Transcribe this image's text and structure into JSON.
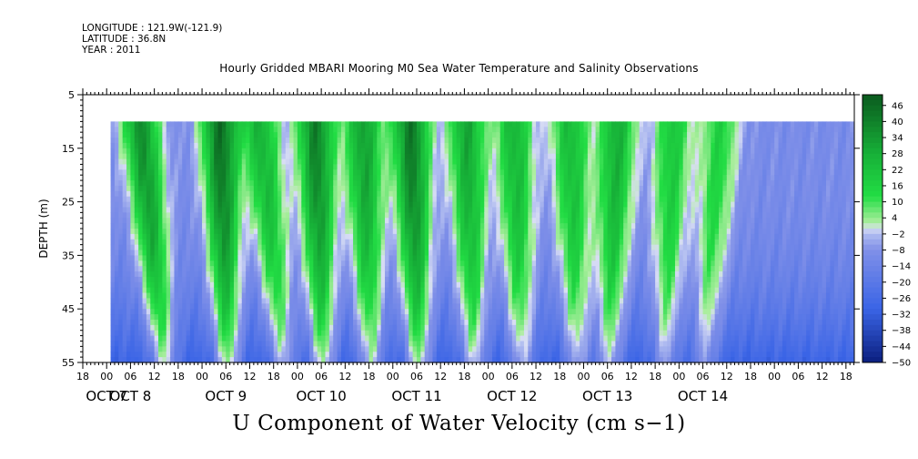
{
  "header": {
    "longitude": "LONGITUDE : 121.9W(-121.9)",
    "latitude": "LATITUDE : 36.8N",
    "year": "YEAR : 2011"
  },
  "colors": {
    "deep_blue": "#0b1e7e",
    "blue": "#3a64e6",
    "light_blue": "#b0bcf0",
    "light_green": "#aeeea0",
    "green": "#22dd44",
    "dark_green": "#0a5a1e",
    "no_data": "#ffffff"
  },
  "chart_data": {
    "type": "heatmap",
    "title": "Hourly Gridded MBARI Mooring M0 Sea Water Temperature and Salinity Observations",
    "xlabel": "U Component of Water Velocity (cm s−1)",
    "ylabel": "DEPTH (m)",
    "y_axis": {
      "range": [
        5,
        55
      ],
      "reversed": true,
      "ticks": [
        5,
        15,
        25,
        35,
        45,
        55
      ]
    },
    "x_axis": {
      "range_hours": "Oct 7 17:00 to Oct 14 20:00",
      "hour_ticks": [
        "18",
        "00",
        "06",
        "12",
        "18",
        "00",
        "06",
        "12",
        "18",
        "00",
        "06",
        "12",
        "18",
        "00",
        "06",
        "12",
        "18",
        "00",
        "06",
        "12",
        "18",
        "00",
        "06",
        "12",
        "18",
        "00",
        "06",
        "12",
        "18",
        "00",
        "06",
        "12",
        "18"
      ],
      "day_labels": [
        {
          "text": "OCT 7",
          "at_tick": 1
        },
        {
          "text": "OCT 8",
          "at_tick": 2
        },
        {
          "text": "OCT 9",
          "at_tick": 6
        },
        {
          "text": "OCT 10",
          "at_tick": 10
        },
        {
          "text": "OCT 11",
          "at_tick": 14
        },
        {
          "text": "OCT 12",
          "at_tick": 18
        },
        {
          "text": "OCT 13",
          "at_tick": 22
        },
        {
          "text": "OCT 14",
          "at_tick": 26
        }
      ]
    },
    "data_depth_range": [
      10,
      55
    ],
    "data_start_offset_hours": 7,
    "colorbar": {
      "range": [
        -50,
        50
      ],
      "tick_labels": [
        "46",
        "40",
        "34",
        "28",
        "22",
        "16",
        "10",
        "4",
        "−2",
        "−8",
        "−14",
        "−20",
        "−26",
        "−32",
        "−38",
        "−44",
        "−50"
      ]
    },
    "u_velocity_pattern": {
      "description_free": true,
      "crests": [
        {
          "hour_near_surface": 14,
          "hour_at_bottom": 20,
          "peak": 30
        },
        {
          "hour_near_surface": 34,
          "hour_at_bottom": 36,
          "peak": 38
        },
        {
          "hour_near_surface": 44,
          "hour_at_bottom": 50,
          "peak": 20
        },
        {
          "hour_near_surface": 58,
          "hour_at_bottom": 60,
          "peak": 34
        },
        {
          "hour_near_surface": 70,
          "hour_at_bottom": 72,
          "peak": 26
        },
        {
          "hour_near_surface": 82,
          "hour_at_bottom": 84,
          "peak": 36
        },
        {
          "hour_near_surface": 96,
          "hour_at_bottom": 98,
          "peak": 24
        },
        {
          "hour_near_surface": 108,
          "hour_at_bottom": 110,
          "peak": 20
        },
        {
          "hour_near_surface": 122,
          "hour_at_bottom": 124,
          "peak": 18
        },
        {
          "hour_near_surface": 134,
          "hour_at_bottom": 132,
          "peak": 22
        },
        {
          "hour_near_surface": 148,
          "hour_at_bottom": 146,
          "peak": 14
        },
        {
          "hour_near_surface": 160,
          "hour_at_bottom": 156,
          "peak": 10
        }
      ],
      "background": -10,
      "deep_minimum": -34
    }
  }
}
